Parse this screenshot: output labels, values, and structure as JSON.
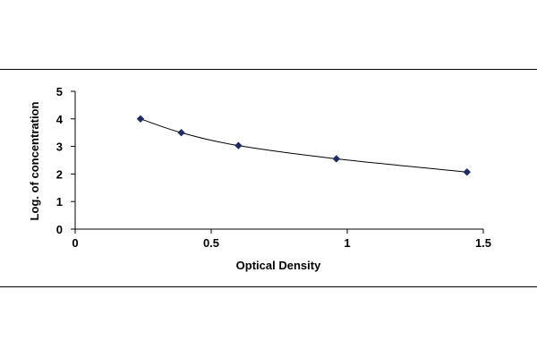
{
  "chart_data": {
    "type": "scatter",
    "title": "",
    "xlabel": "Optical Density",
    "ylabel": "Log. of concentration",
    "xlim": [
      0,
      1.5
    ],
    "ylim": [
      0,
      5
    ],
    "x_ticks": [
      "0",
      "0.5",
      "1",
      "1.5"
    ],
    "y_ticks": [
      "0",
      "1",
      "2",
      "3",
      "4",
      "5"
    ],
    "grid": false,
    "legend": "none",
    "trendline": "smooth",
    "colors": {
      "marker": "#1f2a6b",
      "line": "#000000"
    },
    "series": [
      {
        "x": [
          0.24,
          0.39,
          0.6,
          0.96,
          1.44
        ],
        "y": [
          4.0,
          3.5,
          3.03,
          2.55,
          2.07
        ]
      }
    ]
  }
}
